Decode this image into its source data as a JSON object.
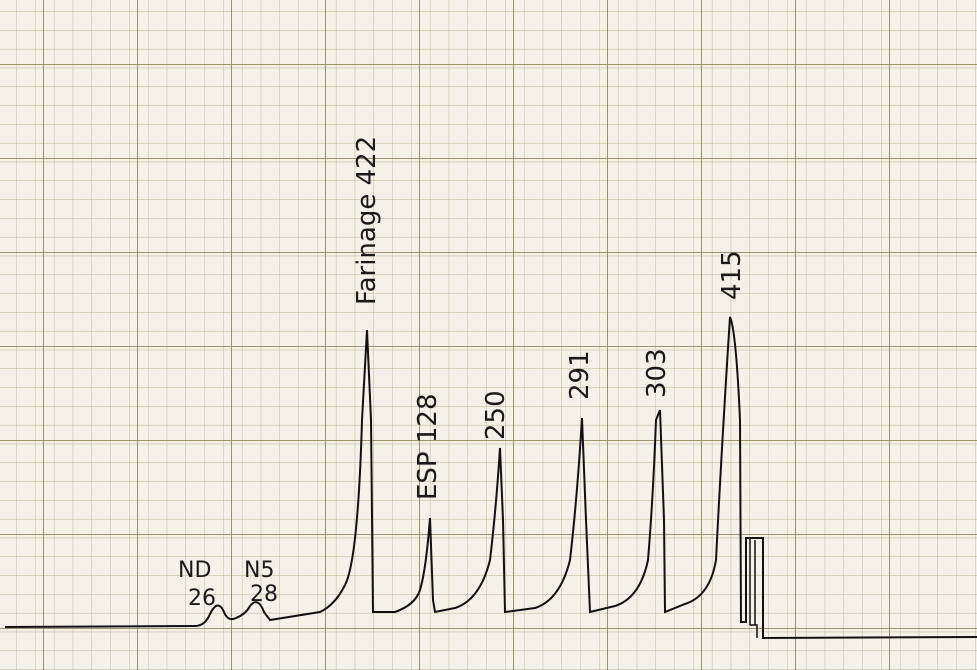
{
  "peaks": [
    {
      "name": "ND",
      "value": "26"
    },
    {
      "name": "N5",
      "value": "28"
    },
    {
      "label": "Farinage 422"
    },
    {
      "label": "ESP 128"
    },
    {
      "label": "250"
    },
    {
      "label": "291"
    },
    {
      "label": "303"
    },
    {
      "label": "415"
    }
  ]
}
